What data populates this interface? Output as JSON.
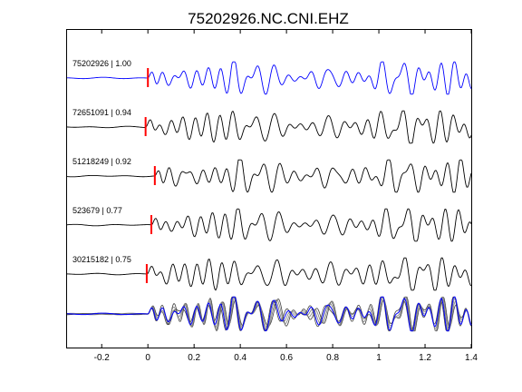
{
  "chart_data": {
    "type": "line",
    "title": "75202926.NC.CNI.EHZ",
    "xlabel": "",
    "ylabel": "",
    "xlim": [
      -0.35,
      1.4
    ],
    "x_ticks": [
      -0.2,
      0,
      0.2,
      0.4,
      0.6,
      0.8,
      1,
      1.2,
      1.4
    ],
    "x_tick_labels": [
      "-0.2",
      "0",
      "0.2",
      "0.4",
      "0.6",
      "0.8",
      "1",
      "1.2",
      "1.4"
    ],
    "grid": false,
    "colors": {
      "reference_trace": "#0000ff",
      "other_traces": "#000000",
      "pick_marker": "#ff0000",
      "stack_gray": "#808080"
    },
    "series": [
      {
        "name": "75202926 | 1.00",
        "event_id": "75202926",
        "correlation": 1.0,
        "pick_time": 0.0,
        "seed": 3
      },
      {
        "name": "72651091 | 0.94",
        "event_id": "72651091",
        "correlation": 0.94,
        "pick_time": -0.01,
        "seed": 11
      },
      {
        "name": "51218249 | 0.92",
        "event_id": "51218249",
        "correlation": 0.92,
        "pick_time": 0.03,
        "seed": 19
      },
      {
        "name": "523679 | 0.77",
        "event_id": "523679",
        "correlation": 0.77,
        "pick_time": 0.015,
        "seed": 27
      },
      {
        "name": "30215182 | 0.75",
        "event_id": "30215182",
        "correlation": 0.75,
        "pick_time": -0.005,
        "seed": 35
      }
    ],
    "stack_row": "overlay of all aligned traces"
  }
}
